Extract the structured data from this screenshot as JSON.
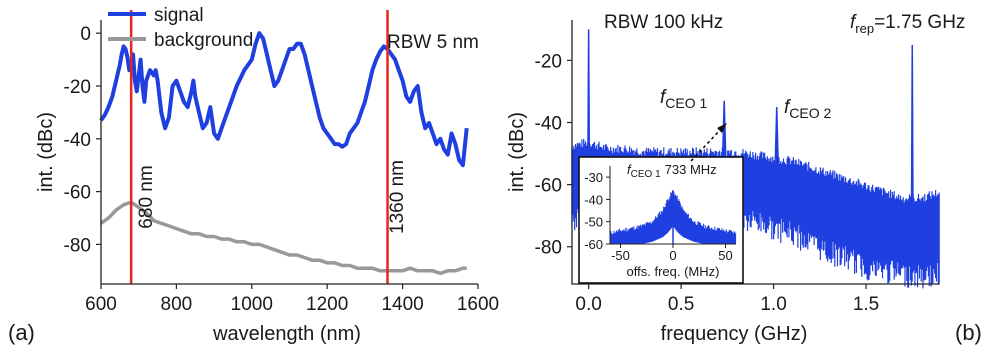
{
  "chart_data": [
    {
      "panel_label": "(a)",
      "type": "line",
      "xlabel": "wavelength (nm)",
      "ylabel": "int. (dBc)",
      "xlim": [
        600,
        1600
      ],
      "ylim": [
        -95,
        5
      ],
      "xticks": [
        600,
        800,
        1000,
        1200,
        1400,
        1600
      ],
      "yticks": [
        0,
        -20,
        -40,
        -60,
        -80
      ],
      "annotation": "RBW 5 nm",
      "legend_position": "top-left",
      "series": [
        {
          "name": "signal",
          "color": "#1f3fe0",
          "x": [
            600,
            610,
            620,
            630,
            640,
            650,
            655,
            660,
            665,
            670,
            675,
            680,
            685,
            690,
            695,
            700,
            705,
            710,
            715,
            720,
            730,
            740,
            745,
            750,
            760,
            770,
            780,
            790,
            800,
            810,
            820,
            830,
            840,
            845,
            850,
            860,
            870,
            880,
            890,
            900,
            910,
            920,
            940,
            960,
            980,
            1000,
            1010,
            1020,
            1030,
            1040,
            1050,
            1060,
            1070,
            1080,
            1090,
            1100,
            1110,
            1120,
            1130,
            1140,
            1150,
            1160,
            1170,
            1180,
            1190,
            1200,
            1210,
            1220,
            1230,
            1240,
            1250,
            1260,
            1270,
            1280,
            1290,
            1300,
            1310,
            1320,
            1330,
            1340,
            1350,
            1360,
            1370,
            1380,
            1390,
            1400,
            1410,
            1420,
            1430,
            1440,
            1450,
            1460,
            1470,
            1480,
            1490,
            1500,
            1510,
            1520,
            1530,
            1540,
            1550,
            1560,
            1570
          ],
          "y": [
            -33,
            -31,
            -28,
            -24,
            -18,
            -12,
            -8,
            -5,
            -6,
            -9,
            -14,
            -12,
            -8,
            -18,
            -22,
            -16,
            -10,
            -20,
            -26,
            -18,
            -14,
            -16,
            -14,
            -18,
            -30,
            -36,
            -32,
            -20,
            -18,
            -22,
            -26,
            -28,
            -22,
            -18,
            -24,
            -30,
            -36,
            -34,
            -28,
            -38,
            -40,
            -36,
            -28,
            -20,
            -14,
            -10,
            -4,
            0,
            -2,
            -8,
            -14,
            -20,
            -18,
            -14,
            -10,
            -6,
            -6,
            -4,
            -4,
            -8,
            -14,
            -20,
            -26,
            -32,
            -36,
            -38,
            -40,
            -42,
            -42,
            -43,
            -42,
            -38,
            -36,
            -34,
            -30,
            -26,
            -20,
            -14,
            -10,
            -7,
            -5,
            -6,
            -8,
            -10,
            -14,
            -18,
            -24,
            -26,
            -22,
            -20,
            -30,
            -36,
            -34,
            -38,
            -42,
            -40,
            -44,
            -46,
            -38,
            -42,
            -48,
            -50,
            -36
          ]
        },
        {
          "name": "background",
          "color": "#999999",
          "x": [
            600,
            620,
            640,
            660,
            680,
            700,
            720,
            740,
            760,
            780,
            800,
            820,
            840,
            860,
            880,
            900,
            920,
            940,
            960,
            980,
            1000,
            1020,
            1040,
            1060,
            1080,
            1100,
            1120,
            1140,
            1160,
            1180,
            1200,
            1220,
            1240,
            1260,
            1280,
            1300,
            1320,
            1340,
            1360,
            1380,
            1400,
            1420,
            1440,
            1460,
            1480,
            1500,
            1520,
            1540,
            1560,
            1570
          ],
          "y": [
            -72,
            -70,
            -67,
            -65,
            -64,
            -66,
            -68,
            -71,
            -72,
            -73,
            -74,
            -75,
            -76,
            -76,
            -77,
            -77,
            -78,
            -78,
            -79,
            -79,
            -80,
            -80,
            -81,
            -82,
            -83,
            -84,
            -84,
            -85,
            -86,
            -86,
            -87,
            -87,
            -88,
            -88,
            -89,
            -89,
            -89,
            -90,
            -90,
            -90,
            -90,
            -89,
            -90,
            -90,
            -90,
            -91,
            -90,
            -90,
            -89,
            -89
          ]
        }
      ],
      "vlines": [
        {
          "x": 680,
          "label": "680 nm",
          "color": "#e8261c"
        },
        {
          "x": 1360,
          "label": "1360 nm",
          "color": "#e8261c"
        }
      ]
    },
    {
      "panel_label": "(b)",
      "type": "line",
      "xlabel": "frequency (GHz)",
      "ylabel": "int. (dBc)",
      "xlim": [
        -0.09,
        1.9
      ],
      "ylim": [
        -92,
        -7
      ],
      "xticks": [
        0.0,
        0.5,
        1.0,
        1.5
      ],
      "yticks": [
        -20,
        -40,
        -60,
        -80
      ],
      "annotations": {
        "rbw": "RBW 100 kHz",
        "frep_label": "f",
        "frep_sub": "rep",
        "frep_value": "=1.75 GHz",
        "ceo1_label": "f",
        "ceo1_sub": "CEO 1",
        "ceo2_label": "f",
        "ceo2_sub": "CEO 2"
      },
      "series": [
        {
          "name": "",
          "color": "#1f3fe0",
          "x": [
            -0.09,
            0.0,
            0.1,
            0.2,
            0.3,
            0.4,
            0.5,
            0.6,
            0.7,
            0.8,
            0.9,
            1.0,
            1.1,
            1.2,
            1.3,
            1.4,
            1.5,
            1.6,
            1.7,
            1.8,
            1.9
          ],
          "y_upper": [
            -48,
            -47,
            -49,
            -49,
            -50,
            -50,
            -50,
            -50,
            -50,
            -50,
            -51,
            -52,
            -53,
            -55,
            -57,
            -59,
            -61,
            -63,
            -65,
            -65,
            -63
          ],
          "y_lower": [
            -68,
            -66,
            -63,
            -62,
            -63,
            -63,
            -64,
            -64,
            -65,
            -68,
            -68,
            -70,
            -72,
            -75,
            -78,
            -80,
            -83,
            -84,
            -85,
            -86,
            -85
          ]
        }
      ],
      "peaks": [
        {
          "x": 0.0,
          "y": -10
        },
        {
          "x": 0.733,
          "y": -33
        },
        {
          "x": 1.017,
          "y": -35
        },
        {
          "x": 1.75,
          "y": -15
        }
      ],
      "inset": {
        "xlabel": "offs. freq. (MHz)",
        "xlim": [
          -60,
          60
        ],
        "ylim": [
          -60,
          -25
        ],
        "xticks": [
          -50,
          0,
          50
        ],
        "yticks": [
          -30,
          -40,
          -50,
          -60
        ],
        "title_label": "f",
        "title_sub": "CEO 1",
        "title_value": "733 MHz",
        "series_x": [
          -60,
          -50,
          -40,
          -30,
          -20,
          -10,
          -5,
          0,
          5,
          10,
          20,
          30,
          40,
          50,
          60
        ],
        "series_upper": [
          -55,
          -54,
          -53,
          -52,
          -50,
          -45,
          -40,
          -36,
          -40,
          -45,
          -50,
          -52,
          -53,
          -54,
          -55
        ],
        "series_lower": [
          -60,
          -60,
          -60,
          -60,
          -59,
          -57,
          -55,
          -52,
          -55,
          -57,
          -59,
          -60,
          -60,
          -60,
          -60
        ]
      }
    }
  ]
}
